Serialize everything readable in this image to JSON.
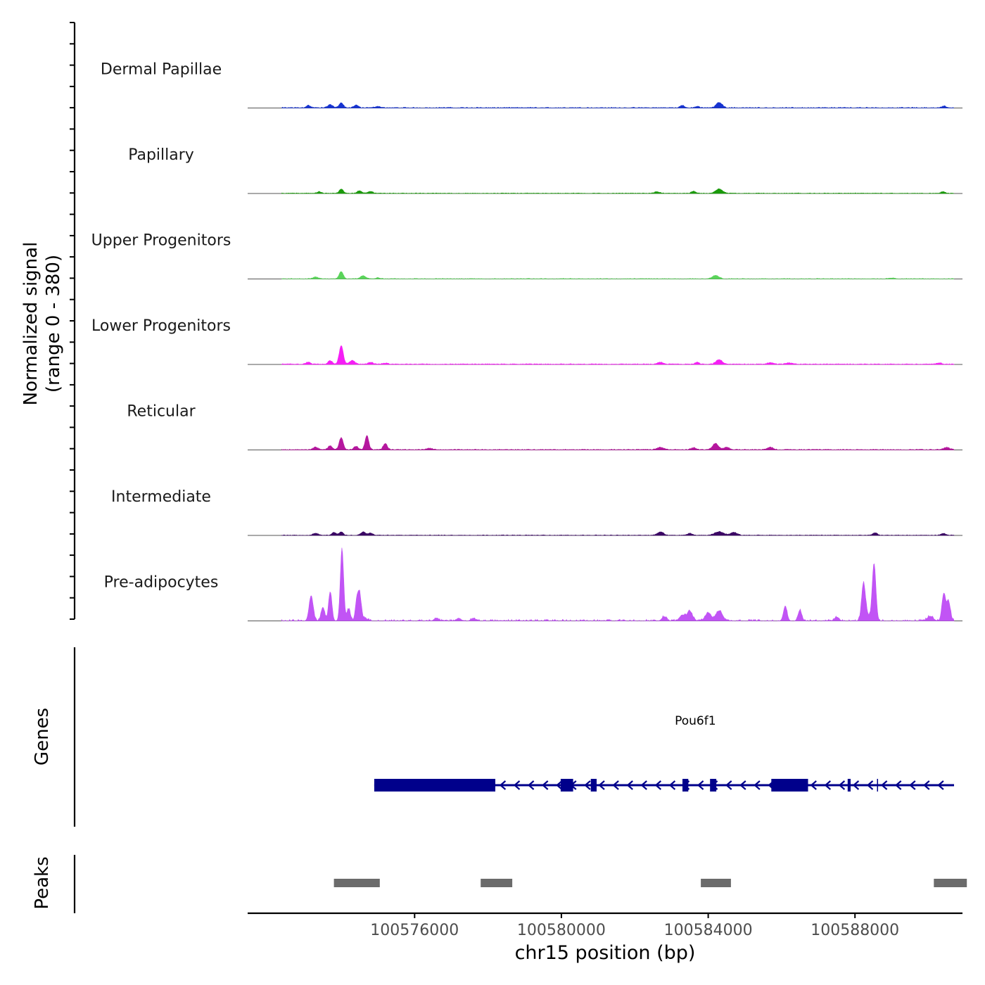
{
  "chart_data": {
    "type": "area",
    "title": "",
    "signal_axis_label": "Normalized signal",
    "signal_axis_range_label": "(range 0 - 380)",
    "signal_range": [
      0,
      380
    ],
    "genes_axis_label": "Genes",
    "peaks_axis_label": "Peaks",
    "xlabel": "chr15 position (bp)",
    "xlim": [
      100571450,
      100590930
    ],
    "x_ticks": [
      {
        "value": 100576000,
        "label": "100576000"
      },
      {
        "value": 100580000,
        "label": "100580000"
      },
      {
        "value": 100584000,
        "label": "100584000"
      },
      {
        "value": 100588000,
        "label": "100588000"
      }
    ],
    "signal_start": 100572380,
    "signal_end": 100590700,
    "tracks": [
      {
        "name": "Dermal Papillae",
        "color": "#1633d1",
        "noise": 4,
        "gaps": 0.3,
        "peaks": [
          [
            100573100,
            12,
            60
          ],
          [
            100573700,
            16,
            70
          ],
          [
            100574000,
            27,
            55
          ],
          [
            100574400,
            14,
            60
          ],
          [
            100575000,
            6,
            100
          ],
          [
            100583300,
            12,
            60
          ],
          [
            100583700,
            8,
            50
          ],
          [
            100584300,
            28,
            80
          ],
          [
            100590430,
            10,
            50
          ]
        ]
      },
      {
        "name": "Papillary",
        "color": "#1a9a0a",
        "noise": 3,
        "gaps": 0.2,
        "peaks": [
          [
            100573400,
            8,
            60
          ],
          [
            100574000,
            22,
            55
          ],
          [
            100574500,
            14,
            60
          ],
          [
            100574800,
            10,
            60
          ],
          [
            100582600,
            8,
            70
          ],
          [
            100583600,
            10,
            60
          ],
          [
            100584300,
            22,
            90
          ],
          [
            100590400,
            8,
            60
          ]
        ]
      },
      {
        "name": "Upper Progenitors",
        "color": "#5ad45a",
        "noise": 3,
        "gaps": 0.25,
        "peaks": [
          [
            100573300,
            10,
            70
          ],
          [
            100574000,
            38,
            55
          ],
          [
            100574600,
            16,
            70
          ],
          [
            100575000,
            6,
            60
          ],
          [
            100584200,
            18,
            90
          ],
          [
            100589000,
            4,
            90
          ]
        ]
      },
      {
        "name": "Lower Progenitors",
        "color": "#f51ef5",
        "noise": 4,
        "gaps": 0.15,
        "peaks": [
          [
            100573100,
            10,
            60
          ],
          [
            100573700,
            18,
            60
          ],
          [
            100574000,
            95,
            55
          ],
          [
            100574300,
            20,
            70
          ],
          [
            100574800,
            10,
            70
          ],
          [
            100575200,
            5,
            80
          ],
          [
            100582700,
            10,
            80
          ],
          [
            100583700,
            10,
            60
          ],
          [
            100584300,
            22,
            90
          ],
          [
            100585700,
            8,
            90
          ],
          [
            100586200,
            6,
            90
          ],
          [
            100590300,
            8,
            60
          ]
        ]
      },
      {
        "name": "Reticular",
        "color": "#b5179e",
        "noise": 4,
        "gaps": 0.15,
        "peaks": [
          [
            100573300,
            12,
            70
          ],
          [
            100573700,
            20,
            60
          ],
          [
            100574000,
            62,
            55
          ],
          [
            100574400,
            18,
            60
          ],
          [
            100574700,
            72,
            50
          ],
          [
            100575200,
            32,
            55
          ],
          [
            100576400,
            8,
            80
          ],
          [
            100582700,
            12,
            90
          ],
          [
            100583600,
            10,
            70
          ],
          [
            100584200,
            32,
            80
          ],
          [
            100584500,
            14,
            70
          ],
          [
            100585700,
            12,
            80
          ],
          [
            100590500,
            12,
            80
          ]
        ]
      },
      {
        "name": "Intermediate",
        "color": "#3b0764",
        "noise": 3,
        "gaps": 0.25,
        "peaks": [
          [
            100573300,
            10,
            70
          ],
          [
            100573800,
            14,
            60
          ],
          [
            100574000,
            18,
            50
          ],
          [
            100574600,
            18,
            60
          ],
          [
            100574800,
            12,
            60
          ],
          [
            100582700,
            18,
            80
          ],
          [
            100583500,
            10,
            70
          ],
          [
            100584300,
            18,
            120
          ],
          [
            100584700,
            14,
            90
          ],
          [
            100588550,
            12,
            60
          ],
          [
            100590400,
            10,
            60
          ]
        ]
      },
      {
        "name": "Pre-adipocytes",
        "color": "#c154f5",
        "noise": 8,
        "gaps": 0.55,
        "peaks": [
          [
            100573180,
            130,
            55
          ],
          [
            100573500,
            70,
            50
          ],
          [
            100573700,
            150,
            45
          ],
          [
            100574020,
            370,
            45
          ],
          [
            100574200,
            60,
            50
          ],
          [
            100574420,
            95,
            40
          ],
          [
            100574500,
            140,
            45
          ],
          [
            100574650,
            14,
            60
          ],
          [
            100576600,
            15,
            60
          ],
          [
            100577200,
            14,
            60
          ],
          [
            100577600,
            14,
            60
          ],
          [
            100582800,
            22,
            60
          ],
          [
            100583300,
            30,
            80
          ],
          [
            100583500,
            50,
            70
          ],
          [
            100584000,
            40,
            80
          ],
          [
            100584300,
            52,
            90
          ],
          [
            100586100,
            75,
            50
          ],
          [
            100586500,
            55,
            50
          ],
          [
            100587500,
            20,
            60
          ],
          [
            100588230,
            170,
            50
          ],
          [
            100588520,
            295,
            50
          ],
          [
            100588300,
            40,
            80
          ],
          [
            100590050,
            24,
            80
          ],
          [
            100590420,
            140,
            50
          ],
          [
            100590550,
            100,
            50
          ]
        ]
      }
    ],
    "gene": {
      "name": "Pou6f1",
      "color": "#00008b",
      "start": 100574900,
      "end": 100590700,
      "strand": "-",
      "exons": [
        [
          100574900,
          100578200
        ],
        [
          100579980,
          100580320
        ],
        [
          100580800,
          100580960
        ],
        [
          100583300,
          100583460
        ],
        [
          100584050,
          100584220
        ],
        [
          100585720,
          100586720
        ],
        [
          100587800,
          100587880
        ]
      ],
      "thin_exons": [
        [
          100588600,
          100588620
        ]
      ]
    },
    "peaks": [
      {
        "start": 100573800,
        "end": 100575050
      },
      {
        "start": 100577800,
        "end": 100578660
      },
      {
        "start": 100583800,
        "end": 100584620
      },
      {
        "start": 100590150,
        "end": 100591050
      }
    ],
    "peak_color": "#6b6b6b"
  }
}
